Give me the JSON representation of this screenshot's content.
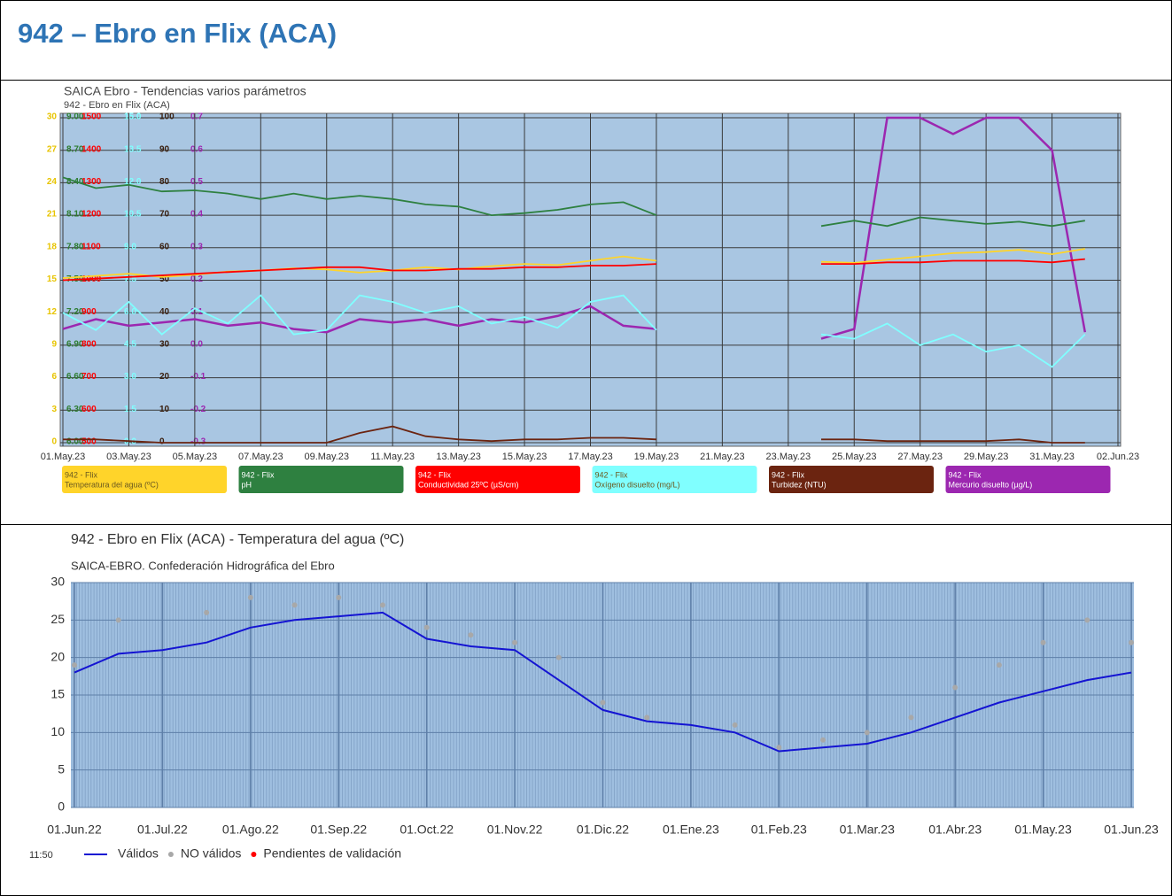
{
  "header": {
    "title": "942 – Ebro en Flix (ACA)"
  },
  "chart_data": [
    {
      "type": "line",
      "title": "SAICA Ebro - Tendencias varios parámetros",
      "subtitle": "942 - Ebro en Flix (ACA)",
      "station": "942 - Flix",
      "grid": true,
      "x": [
        "01.May.23",
        "02.May.23",
        "03.May.23",
        "04.May.23",
        "05.May.23",
        "06.May.23",
        "07.May.23",
        "08.May.23",
        "09.May.23",
        "10.May.23",
        "11.May.23",
        "12.May.23",
        "13.May.23",
        "14.May.23",
        "15.May.23",
        "16.May.23",
        "17.May.23",
        "18.May.23",
        "19.May.23",
        "20.May.23",
        "21.May.23",
        "22.May.23",
        "23.May.23",
        "24.May.23",
        "25.May.23",
        "26.May.23",
        "27.May.23",
        "28.May.23",
        "29.May.23",
        "30.May.23",
        "31.May.23",
        "01.Jun.23",
        "02.Jun.23"
      ],
      "xticks": [
        "01.May.23",
        "03.May.23",
        "05.May.23",
        "07.May.23",
        "09.May.23",
        "11.May.23",
        "13.May.23",
        "15.May.23",
        "17.May.23",
        "19.May.23",
        "21.May.23",
        "23.May.23",
        "25.May.23",
        "27.May.23",
        "29.May.23",
        "31.May.23",
        "02.Jun.23"
      ],
      "axes": [
        {
          "color": "#e8c400",
          "ylim": [
            0,
            30
          ],
          "yticks": [
            0,
            3,
            6,
            9,
            12,
            15,
            18,
            21,
            24,
            27,
            30
          ]
        },
        {
          "color": "#2e7d32",
          "ylim": [
            6,
            9
          ],
          "yticks": [
            {
              "value": 6,
              "label": "6.00"
            },
            {
              "value": 6.3,
              "label": "6.30"
            },
            {
              "value": 6.6,
              "label": "6.60"
            },
            {
              "value": 6.9,
              "label": "6.90"
            },
            {
              "value": 7.2,
              "label": "7.20"
            },
            {
              "value": 7.5,
              "label": "7.50"
            },
            {
              "value": 7.8,
              "label": "7.80"
            },
            {
              "value": 8.1,
              "label": "8.10"
            },
            {
              "value": 8.4,
              "label": "8.40"
            },
            {
              "value": 8.7,
              "label": "8.70"
            },
            {
              "value": 9,
              "label": "9.00"
            }
          ]
        },
        {
          "color": "#ff0000",
          "ylim": [
            500,
            1500
          ],
          "yticks": [
            500,
            600,
            700,
            800,
            900,
            1000,
            1100,
            1200,
            1300,
            1400,
            1500
          ]
        },
        {
          "color": "#80ffff",
          "ylim": [
            0,
            15
          ],
          "yticks": [
            {
              "value": 0,
              "label": "0.0"
            },
            1.5,
            {
              "value": 3,
              "label": "3.0"
            },
            4.5,
            {
              "value": 6,
              "label": "6.0"
            },
            7.5,
            {
              "value": 9,
              "label": "9.0"
            },
            10.5,
            {
              "value": 12,
              "label": "12.0"
            },
            13.5,
            {
              "value": 15,
              "label": "15.0"
            }
          ]
        },
        {
          "color": "#3a2010",
          "ylim": [
            0,
            100
          ],
          "yticks": [
            0,
            10,
            20,
            30,
            40,
            50,
            60,
            70,
            80,
            90,
            100
          ]
        },
        {
          "color": "#9c27b0",
          "ylim": [
            -0.3,
            0.7
          ],
          "yticks": [
            -0.3,
            -0.2,
            -0.1,
            {
              "value": 0,
              "label": "0.0"
            },
            0.1,
            0.2,
            0.3,
            0.4,
            0.5,
            0.6,
            0.7
          ]
        }
      ],
      "series": [
        {
          "name": "Temperatura del agua (ºC)",
          "color": "#ffd42a",
          "axis": 0,
          "values": [
            15.2,
            15.4,
            15.6,
            15.3,
            15.5,
            15.8,
            15.9,
            16.1,
            16.0,
            15.7,
            15.9,
            16.2,
            16.0,
            16.3,
            16.5,
            16.4,
            16.8,
            17.2,
            16.8,
            null,
            null,
            null,
            null,
            16.7,
            16.6,
            16.9,
            17.2,
            17.5,
            17.6,
            17.8,
            17.4,
            17.9,
            null
          ]
        },
        {
          "name": "pH",
          "color": "#2e8040",
          "axis": 1,
          "values": [
            8.45,
            8.35,
            8.38,
            8.32,
            8.33,
            8.3,
            8.25,
            8.3,
            8.25,
            8.28,
            8.25,
            8.2,
            8.18,
            8.1,
            8.12,
            8.15,
            8.2,
            8.22,
            8.1,
            null,
            null,
            null,
            null,
            8.0,
            8.05,
            8.0,
            8.08,
            8.05,
            8.02,
            8.04,
            8.0,
            8.05,
            null
          ]
        },
        {
          "name": "Conductividad 25ºC (µS/cm)",
          "color": "#ff0000",
          "axis": 2,
          "values": [
            1000,
            1005,
            1010,
            1015,
            1020,
            1025,
            1030,
            1035,
            1040,
            1040,
            1030,
            1030,
            1035,
            1035,
            1040,
            1040,
            1045,
            1045,
            1050,
            null,
            null,
            null,
            null,
            1050,
            1050,
            1055,
            1055,
            1060,
            1060,
            1060,
            1055,
            1065,
            null
          ]
        },
        {
          "name": "Oxígeno disuelto (mg/L)",
          "color": "#80ffff",
          "axis": 3,
          "values": [
            6.0,
            5.2,
            6.5,
            5.0,
            6.2,
            5.5,
            6.8,
            5.0,
            5.2,
            6.8,
            6.5,
            6.0,
            6.3,
            5.5,
            5.8,
            5.3,
            6.5,
            6.8,
            5.2,
            null,
            null,
            null,
            null,
            5.0,
            4.8,
            5.5,
            4.5,
            5.0,
            4.2,
            4.5,
            3.5,
            5.0,
            null
          ]
        },
        {
          "name": "Turbidez (NTU)",
          "color": "#6b2410",
          "axis": 4,
          "values": [
            1,
            1,
            0.5,
            0,
            0,
            0,
            0,
            0,
            0,
            3,
            5,
            2,
            1,
            0.5,
            1,
            1,
            1.5,
            1.5,
            1,
            null,
            null,
            null,
            null,
            1,
            1,
            0.5,
            0.5,
            0.5,
            0.5,
            1,
            0,
            0,
            null
          ]
        },
        {
          "name": "Mercurio disuelto (µg/L)",
          "color": "#9c27b0",
          "axis": 5,
          "values": [
            0.05,
            0.08,
            0.06,
            0.07,
            0.08,
            0.06,
            0.07,
            0.05,
            0.04,
            0.08,
            0.07,
            0.08,
            0.06,
            0.08,
            0.07,
            0.09,
            0.12,
            0.06,
            0.05,
            null,
            null,
            null,
            null,
            0.02,
            0.05,
            0.7,
            0.7,
            0.65,
            0.7,
            0.7,
            0.6,
            0.04,
            null
          ]
        }
      ]
    },
    {
      "type": "line",
      "title": "942 - Ebro en Flix (ACA) - Temperatura del agua (ºC)",
      "subtitle": "SAICA-EBRO. Confederación Hidrográfica del Ebro",
      "time": "11:50",
      "x": [
        "01.Jun.22",
        "15.Jun.22",
        "01.Jul.22",
        "15.Jul.22",
        "01.Ago.22",
        "15.Ago.22",
        "01.Sep.22",
        "15.Sep.22",
        "01.Oct.22",
        "15.Oct.22",
        "01.Nov.22",
        "15.Nov.22",
        "01.Dic.22",
        "15.Dic.22",
        "01.Ene.23",
        "15.Ene.23",
        "01.Feb.23",
        "15.Feb.23",
        "01.Mar.23",
        "15.Mar.23",
        "01.Abr.23",
        "15.Abr.23",
        "01.May.23",
        "15.May.23",
        "01.Jun.23"
      ],
      "xticks": [
        "01.Jun.22",
        "01.Jul.22",
        "01.Ago.22",
        "01.Sep.22",
        "01.Oct.22",
        "01.Nov.22",
        "01.Dic.22",
        "01.Ene.23",
        "01.Feb.23",
        "01.Mar.23",
        "01.Abr.23",
        "01.May.23",
        "01.Jun.23"
      ],
      "ylim": [
        0,
        30
      ],
      "yticks": [
        0,
        5,
        10,
        15,
        20,
        25,
        30
      ],
      "grid": true,
      "series": [
        {
          "name": "Válidos",
          "color": "#1414d2",
          "marker": "line",
          "values": [
            18,
            20.5,
            21,
            22,
            24,
            25,
            25.5,
            26,
            22.5,
            21.5,
            21,
            17,
            13,
            11.5,
            11,
            10,
            7.5,
            8,
            8.5,
            10,
            12,
            14,
            15.5,
            17,
            18
          ]
        },
        {
          "name": "NO válidos",
          "color": "#a8a8a8",
          "marker": "dot",
          "values": [
            19,
            25,
            null,
            26,
            28,
            27,
            28,
            27,
            24,
            23,
            22,
            20,
            14,
            12,
            null,
            11,
            8,
            9,
            10,
            12,
            16,
            19,
            22,
            25,
            22
          ]
        },
        {
          "name": "Pendientes de validación",
          "color": "#ff0000",
          "marker": "dot"
        }
      ]
    }
  ]
}
